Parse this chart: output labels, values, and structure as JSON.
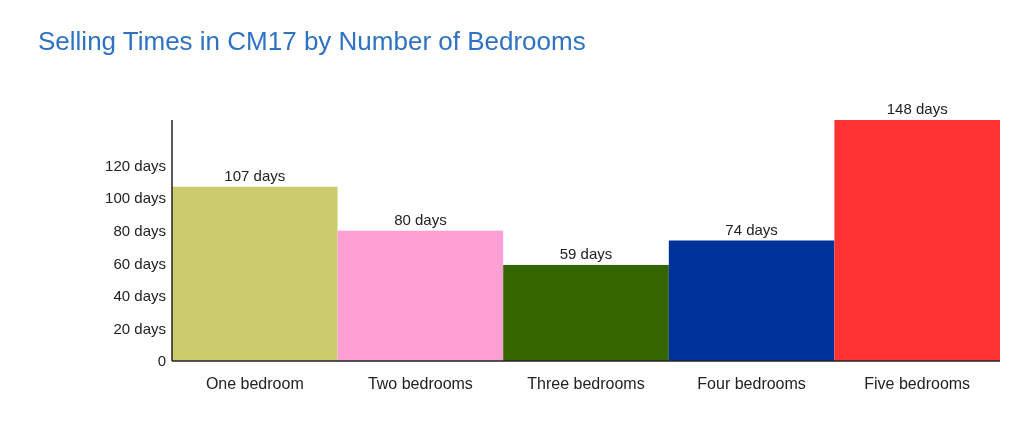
{
  "chart_data": {
    "type": "bar",
    "title": "Selling Times in CM17 by Number of Bedrooms",
    "categories": [
      "One bedroom",
      "Two bedrooms",
      "Three bedrooms",
      "Four bedrooms",
      "Five bedrooms"
    ],
    "values": [
      107,
      80,
      59,
      74,
      148
    ],
    "colors": [
      "#cccc6e",
      "#ff9fd4",
      "#336600",
      "#003399",
      "#ff3333"
    ],
    "value_labels": [
      "107 days",
      "80 days",
      "59 days",
      "74 days",
      "148 days"
    ],
    "ylim": [
      0,
      148
    ],
    "yticks": [
      0,
      {
        "value": 20,
        "label": "20 days"
      },
      {
        "value": 40,
        "label": "40 days"
      },
      {
        "value": 60,
        "label": "60 days"
      },
      {
        "value": 80,
        "label": "80 days"
      },
      {
        "value": 100,
        "label": "100 days"
      },
      {
        "value": 120,
        "label": "120 days"
      }
    ],
    "grid": false
  }
}
